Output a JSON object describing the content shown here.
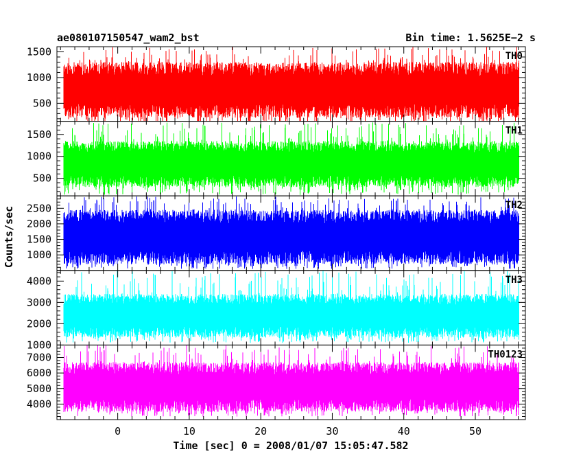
{
  "chart_data": {
    "type": "line",
    "title": "ae080107150547_wam2_bst",
    "subtitle": "Bin time: 1.5625E−2 s",
    "xlabel": "Time [sec] 0 = 2008/01/07 15:05:47.582",
    "ylabel": "Counts/sec",
    "xlim": [
      -8.5,
      57
    ],
    "x_data_range": [
      -7.5,
      56
    ],
    "x_ticks": [
      0,
      10,
      20,
      30,
      40,
      50
    ],
    "panels": [
      {
        "name": "TH0",
        "color": "#ff0000",
        "ylim": [
          150,
          1600
        ],
        "y_ticks": [
          500,
          1000,
          1500
        ],
        "typical": [
          220,
          1300
        ],
        "spikes": [
          100,
          1600
        ]
      },
      {
        "name": "TH1",
        "color": "#00ff00",
        "ylim": [
          100,
          1800
        ],
        "y_ticks": [
          500,
          1000,
          1500
        ],
        "typical": [
          300,
          1350
        ],
        "spikes": [
          120,
          1780
        ]
      },
      {
        "name": "TH2",
        "color": "#0000ff",
        "ylim": [
          500,
          2900
        ],
        "y_ticks": [
          1000,
          1500,
          2000,
          2500
        ],
        "typical": [
          700,
          2450
        ],
        "spikes": [
          550,
          2880
        ]
      },
      {
        "name": "TH3",
        "color": "#00ffff",
        "ylim": [
          1000,
          4500
        ],
        "y_ticks": [
          1000,
          2000,
          3000,
          4000
        ],
        "typical": [
          1350,
          3400
        ],
        "spikes": [
          1100,
          4500
        ]
      },
      {
        "name": "TH0123",
        "color": "#ff00ff",
        "ylim": [
          3000,
          7800
        ],
        "y_ticks": [
          4000,
          5000,
          6000,
          7000
        ],
        "typical": [
          3500,
          6700
        ],
        "spikes": [
          3200,
          7800
        ]
      }
    ]
  }
}
